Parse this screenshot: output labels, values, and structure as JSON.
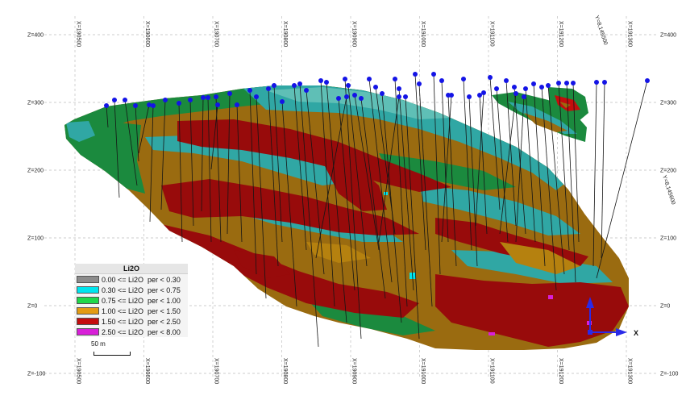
{
  "view": {
    "z_levels": [
      {
        "label": "Z=400",
        "z": 400
      },
      {
        "label": "Z=300",
        "z": 300
      },
      {
        "label": "Z=200",
        "z": 200
      },
      {
        "label": "Z=100",
        "z": 100
      },
      {
        "label": "Z=0",
        "z": 0
      },
      {
        "label": "Z=-100",
        "z": -100
      }
    ],
    "x_levels": [
      {
        "label": "X=190500",
        "x": 190500
      },
      {
        "label": "X=190600",
        "x": 190600
      },
      {
        "label": "X=190700",
        "x": 190700
      },
      {
        "label": "X=190800",
        "x": 190800
      },
      {
        "label": "X=190900",
        "x": 190900
      },
      {
        "label": "X=191000",
        "x": 191000
      },
      {
        "label": "X=191100",
        "x": 191100
      },
      {
        "label": "X=191200",
        "x": 191200
      },
      {
        "label": "X=191300",
        "x": 191300
      }
    ],
    "y_labels": [
      "Y=8,145500",
      "Y=8,145600"
    ]
  },
  "legend": {
    "title": "Li2O",
    "items": [
      {
        "label": "0.00 <= Li2O  per < 0.30",
        "color": "#8c8c8c"
      },
      {
        "label": "0.30 <= Li2O  per < 0.75",
        "color": "#00e5ee"
      },
      {
        "label": "0.75 <= Li2O  per < 1.00",
        "color": "#1fd84a"
      },
      {
        "label": "1.00 <= Li2O  per < 1.50",
        "color": "#e39b12"
      },
      {
        "label": "1.50 <= Li2O  per < 2.50",
        "color": "#c40d0d"
      },
      {
        "label": "2.50 <= Li2O  per < 8.00",
        "color": "#d81fd8"
      }
    ]
  },
  "scale_bar": {
    "label": "50 m"
  },
  "axis_triad": {
    "x_label": "X"
  },
  "colors": {
    "block_brown": "#9a6b10",
    "block_red": "#980b0b",
    "block_green": "#1b8a3e",
    "block_teal": "#30a7a4",
    "block_lightteal": "#5fbfb6",
    "collar": "#1414e6",
    "grid": "#bfbfbf"
  }
}
